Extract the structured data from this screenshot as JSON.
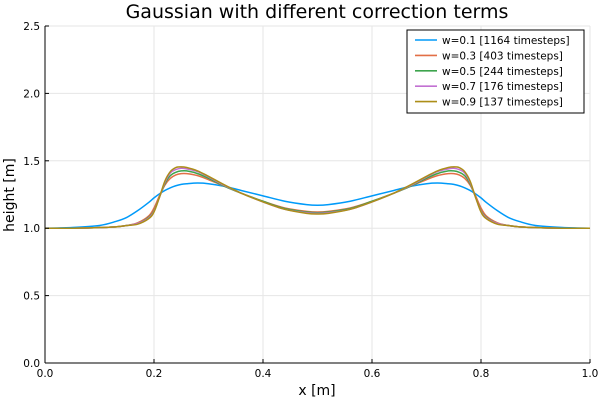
{
  "chart_data": {
    "type": "line",
    "title": "Gaussian with different correction terms",
    "xlabel": "x [m]",
    "ylabel": "height [m]",
    "xlim": [
      0.0,
      1.0
    ],
    "ylim": [
      0.0,
      2.5
    ],
    "x_ticks": [
      0.0,
      0.2,
      0.4,
      0.6,
      0.8,
      1.0
    ],
    "x_tick_labels": [
      "0.0",
      "0.2",
      "0.4",
      "0.6",
      "0.8",
      "1.0"
    ],
    "y_ticks": [
      0.0,
      0.5,
      1.0,
      1.5,
      2.0,
      2.5
    ],
    "y_tick_labels": [
      "0.0",
      "0.5",
      "1.0",
      "1.5",
      "2.0",
      "2.5"
    ],
    "grid": true,
    "legend_position": "top-right",
    "x": [
      0.0,
      0.05,
      0.1,
      0.13,
      0.15,
      0.17,
      0.19,
      0.2,
      0.21,
      0.22,
      0.23,
      0.24,
      0.25,
      0.26,
      0.28,
      0.3,
      0.33,
      0.36,
      0.4,
      0.44,
      0.48,
      0.5,
      0.52,
      0.56,
      0.6,
      0.64,
      0.67,
      0.7,
      0.72,
      0.74,
      0.75,
      0.76,
      0.77,
      0.78,
      0.79,
      0.8,
      0.81,
      0.83,
      0.85,
      0.87,
      0.9,
      0.95,
      1.0
    ],
    "series": [
      {
        "name": "w=0.1 [1164 timesteps]",
        "color": "#009AF9",
        "values": [
          1.0,
          1.005,
          1.02,
          1.05,
          1.08,
          1.13,
          1.19,
          1.225,
          1.255,
          1.28,
          1.3,
          1.315,
          1.325,
          1.33,
          1.335,
          1.33,
          1.31,
          1.28,
          1.24,
          1.2,
          1.175,
          1.17,
          1.175,
          1.2,
          1.24,
          1.28,
          1.31,
          1.33,
          1.335,
          1.33,
          1.325,
          1.315,
          1.3,
          1.28,
          1.255,
          1.225,
          1.19,
          1.13,
          1.08,
          1.05,
          1.02,
          1.005,
          1.0
        ]
      },
      {
        "name": "w=0.3 [403 timesteps]",
        "color": "#E26F46",
        "values": [
          1.0,
          1.0,
          1.005,
          1.01,
          1.02,
          1.04,
          1.09,
          1.15,
          1.24,
          1.32,
          1.37,
          1.395,
          1.405,
          1.405,
          1.39,
          1.36,
          1.31,
          1.26,
          1.2,
          1.15,
          1.125,
          1.12,
          1.125,
          1.15,
          1.2,
          1.26,
          1.31,
          1.36,
          1.39,
          1.405,
          1.405,
          1.395,
          1.37,
          1.32,
          1.24,
          1.15,
          1.09,
          1.04,
          1.02,
          1.01,
          1.005,
          1.0,
          1.0
        ]
      },
      {
        "name": "w=0.5 [244 timesteps]",
        "color": "#3DA44D",
        "values": [
          1.0,
          1.0,
          1.005,
          1.01,
          1.02,
          1.035,
          1.08,
          1.13,
          1.23,
          1.33,
          1.39,
          1.415,
          1.425,
          1.425,
          1.405,
          1.37,
          1.31,
          1.26,
          1.2,
          1.145,
          1.12,
          1.115,
          1.12,
          1.145,
          1.2,
          1.26,
          1.31,
          1.37,
          1.405,
          1.425,
          1.425,
          1.415,
          1.39,
          1.33,
          1.23,
          1.13,
          1.08,
          1.035,
          1.02,
          1.01,
          1.005,
          1.0,
          1.0
        ]
      },
      {
        "name": "w=0.7 [176 timesteps]",
        "color": "#C271D2",
        "values": [
          1.0,
          1.0,
          1.005,
          1.01,
          1.02,
          1.035,
          1.075,
          1.125,
          1.23,
          1.34,
          1.41,
          1.435,
          1.445,
          1.44,
          1.42,
          1.38,
          1.315,
          1.26,
          1.195,
          1.14,
          1.115,
          1.11,
          1.115,
          1.14,
          1.195,
          1.26,
          1.315,
          1.38,
          1.42,
          1.44,
          1.445,
          1.435,
          1.41,
          1.34,
          1.23,
          1.125,
          1.075,
          1.035,
          1.02,
          1.01,
          1.005,
          1.0,
          1.0
        ]
      },
      {
        "name": "w=0.9 [137 timesteps]",
        "color": "#AC8E18",
        "values": [
          1.0,
          1.0,
          1.005,
          1.01,
          1.02,
          1.03,
          1.07,
          1.12,
          1.23,
          1.35,
          1.42,
          1.45,
          1.455,
          1.45,
          1.425,
          1.385,
          1.32,
          1.26,
          1.195,
          1.14,
          1.11,
          1.105,
          1.11,
          1.14,
          1.195,
          1.26,
          1.32,
          1.385,
          1.425,
          1.45,
          1.455,
          1.45,
          1.42,
          1.35,
          1.23,
          1.12,
          1.07,
          1.03,
          1.02,
          1.01,
          1.005,
          1.0,
          1.0
        ]
      }
    ]
  }
}
